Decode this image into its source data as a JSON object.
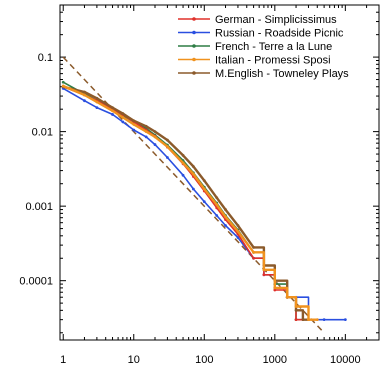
{
  "chart_data": {
    "type": "line",
    "title": "",
    "xlabel": "",
    "ylabel": "",
    "x_scale": "log",
    "y_scale": "log",
    "xlim": [
      0.9,
      30000
    ],
    "ylim": [
      1.6e-05,
      0.5
    ],
    "grid": false,
    "legend_placement": "top-right",
    "x_tick_labels": [
      "1",
      "10",
      "100",
      "1000",
      "10000"
    ],
    "x_tick_values": [
      1,
      10,
      100,
      1000,
      10000
    ],
    "y_tick_labels": [
      "0.1",
      "0.01",
      "0.001",
      "0.0001"
    ],
    "y_tick_values": [
      0.1,
      0.01,
      0.001,
      0.0001
    ],
    "series": [
      {
        "name": "German - Simplicissimus",
        "color": "#e0302a",
        "x": [
          1,
          2,
          3,
          5,
          7,
          10,
          15,
          20,
          30,
          50,
          70,
          100,
          150,
          200,
          300,
          500,
          700,
          1000,
          1500,
          2000,
          2500,
          3000
        ],
        "y": [
          0.04,
          0.031,
          0.026,
          0.02,
          0.017,
          0.0135,
          0.0105,
          0.0087,
          0.0062,
          0.0037,
          0.0025,
          0.0016,
          0.00095,
          0.00066,
          0.00042,
          0.0002,
          0.00012,
          7.5e-05,
          6e-05,
          3e-05,
          3e-05,
          3e-05
        ]
      },
      {
        "name": "Russian - Roadside Picnic",
        "color": "#2a4fe0",
        "x": [
          1,
          2,
          3,
          5,
          7,
          10,
          15,
          20,
          30,
          50,
          70,
          100,
          150,
          200,
          300,
          500,
          700,
          1000,
          1500,
          2000,
          3000,
          5000,
          10000
        ],
        "y": [
          0.038,
          0.026,
          0.021,
          0.017,
          0.0135,
          0.0105,
          0.0085,
          0.0067,
          0.0045,
          0.0026,
          0.0017,
          0.00115,
          0.00075,
          0.00055,
          0.00038,
          0.0002,
          0.00012,
          8e-05,
          6e-05,
          6e-05,
          3e-05,
          3e-05,
          3e-05
        ]
      },
      {
        "name": "French - Terre a la Lune",
        "color": "#2e7d45",
        "x": [
          1,
          2,
          3,
          5,
          7,
          10,
          15,
          20,
          30,
          50,
          70,
          100,
          150,
          200,
          300,
          500,
          700,
          1000,
          1500,
          2000,
          3000
        ],
        "y": [
          0.046,
          0.032,
          0.026,
          0.02,
          0.0165,
          0.0135,
          0.011,
          0.009,
          0.0066,
          0.0041,
          0.0028,
          0.0018,
          0.0011,
          0.00075,
          0.00048,
          0.00024,
          0.00014,
          9e-05,
          6e-05,
          3e-05,
          3e-05
        ]
      },
      {
        "name": "Italian - Promessi Sposi",
        "color": "#f0921e",
        "x": [
          1,
          2,
          3,
          5,
          7,
          10,
          15,
          20,
          30,
          50,
          70,
          100,
          150,
          200,
          300,
          500,
          700,
          1000,
          1500,
          2000,
          3000,
          4000
        ],
        "y": [
          0.041,
          0.031,
          0.025,
          0.019,
          0.0155,
          0.0125,
          0.01,
          0.0085,
          0.0063,
          0.0038,
          0.0027,
          0.0017,
          0.00105,
          0.00072,
          0.00046,
          0.00024,
          0.00014,
          8e-05,
          6e-05,
          4.5e-05,
          3e-05,
          3e-05
        ]
      },
      {
        "name": "M.English - Towneley Plays",
        "color": "#8b5a2b",
        "x": [
          1,
          2,
          3,
          5,
          7,
          10,
          15,
          20,
          30,
          50,
          70,
          100,
          150,
          200,
          300,
          500,
          700,
          1000,
          1500,
          2000,
          2500,
          3000
        ],
        "y": [
          0.04,
          0.034,
          0.028,
          0.021,
          0.0175,
          0.014,
          0.0118,
          0.01,
          0.0077,
          0.0048,
          0.0034,
          0.0022,
          0.0013,
          0.0009,
          0.00055,
          0.00028,
          0.00016,
          0.0001,
          6e-05,
          4e-05,
          3e-05,
          3e-05
        ]
      },
      {
        "name": "",
        "style": "dashed",
        "color": "#8b5a2b",
        "x": [
          1,
          5000
        ],
        "y": [
          0.1,
          2e-05
        ]
      }
    ]
  }
}
